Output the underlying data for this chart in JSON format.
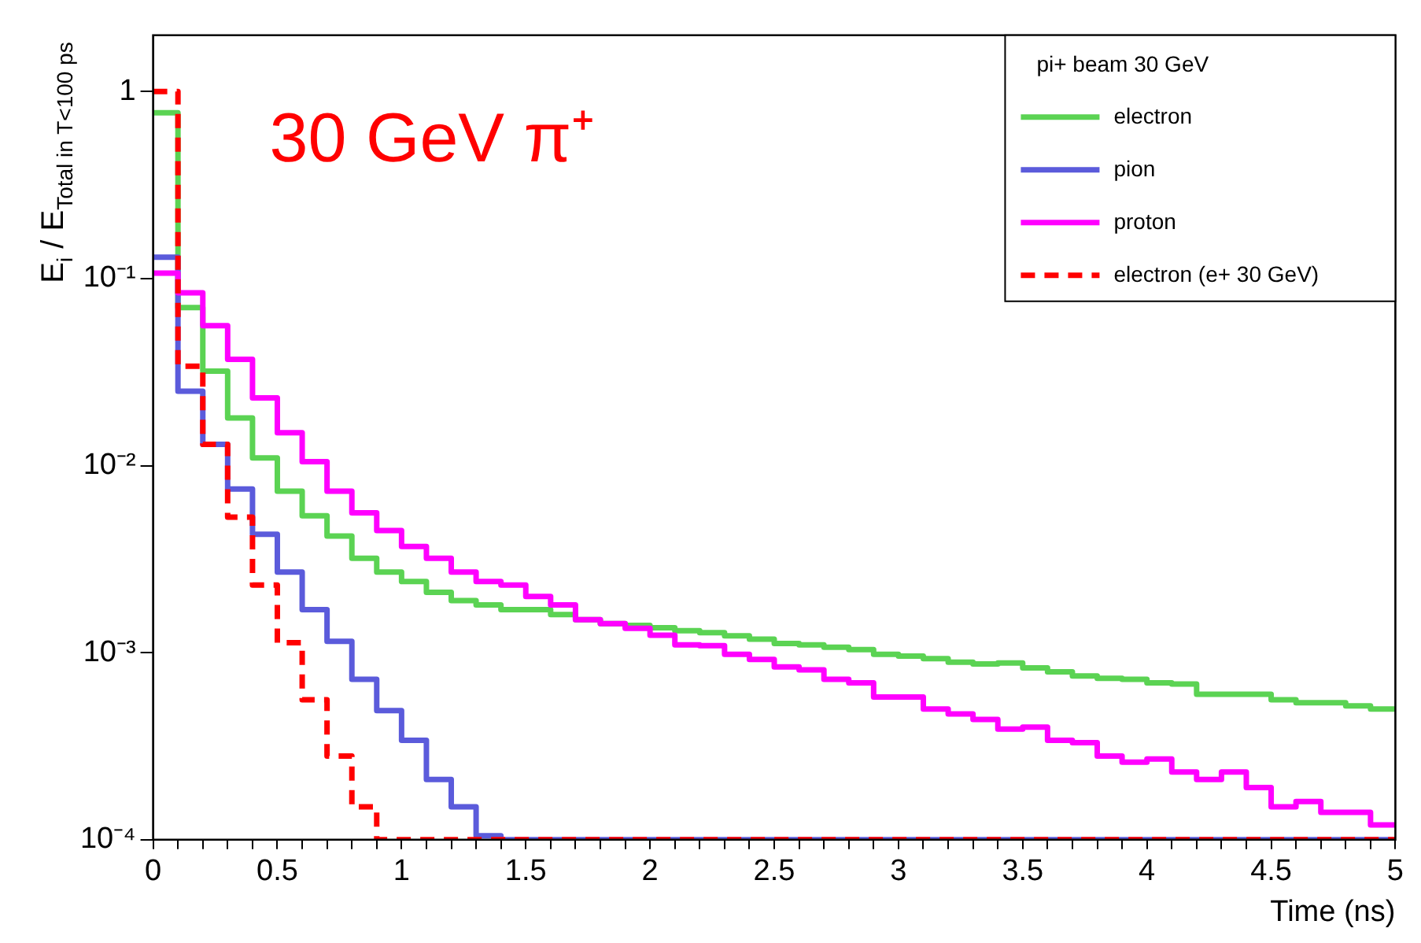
{
  "chart_data": {
    "type": "histogram",
    "xlabel": "Time (ns)",
    "ylabel": "E$_{i}$ / E$_{Total in T<100 ps}$",
    "legend_title": "pi+ beam 30 GeV",
    "legend": "top right",
    "grid": false,
    "log": "y",
    "marker": "none",
    "annotations": [
      "30 GeV π⁺"
    ],
    "xlim": [
      0,
      5
    ],
    "xticks": [
      0,
      {
        "value": 0.1,
        "label": null
      },
      {
        "value": 0.2,
        "label": null
      },
      {
        "value": 0.3,
        "label": null
      },
      {
        "value": 0.4,
        "label": null
      },
      0.5,
      {
        "value": 0.6,
        "label": null
      },
      {
        "value": 0.7,
        "label": null
      },
      {
        "value": 0.8,
        "label": null
      },
      {
        "value": 0.9,
        "label": null
      },
      1,
      {
        "value": 1.1,
        "label": null
      },
      {
        "value": 1.2,
        "label": null
      },
      {
        "value": 1.3,
        "label": null
      },
      {
        "value": 1.4,
        "label": null
      },
      1.5,
      {
        "value": 1.6,
        "label": null
      },
      {
        "value": 1.7,
        "label": null
      },
      {
        "value": 1.8,
        "label": null
      },
      {
        "value": 1.9,
        "label": null
      },
      2,
      {
        "value": 2.1,
        "label": null
      },
      {
        "value": 2.2,
        "label": null
      },
      {
        "value": 2.3,
        "label": null
      },
      {
        "value": 2.4,
        "label": null
      },
      2.5,
      {
        "value": 2.6,
        "label": null
      },
      {
        "value": 2.7,
        "label": null
      },
      {
        "value": 2.8,
        "label": null
      },
      {
        "value": 2.9,
        "label": null
      },
      3,
      {
        "value": 3.1,
        "label": null
      },
      {
        "value": 3.2,
        "label": null
      },
      {
        "value": 3.3,
        "label": null
      },
      {
        "value": 3.4,
        "label": null
      },
      3.5,
      {
        "value": 3.6,
        "label": null
      },
      {
        "value": 3.7,
        "label": null
      },
      {
        "value": 3.8,
        "label": null
      },
      {
        "value": 3.9,
        "label": null
      },
      4,
      {
        "value": 4.1,
        "label": null
      },
      {
        "value": 4.2,
        "label": null
      },
      {
        "value": 4.3,
        "label": null
      },
      {
        "value": 4.4,
        "label": null
      },
      4.5,
      {
        "value": 4.6,
        "label": null
      },
      {
        "value": 4.7,
        "label": null
      },
      {
        "value": 4.8,
        "label": null
      },
      {
        "value": 4.9,
        "label": null
      },
      5
    ],
    "ylim": [
      0.0001,
      2
    ],
    "yticks": [
      {
        "value": 0.0001,
        "label": "10⁻⁴"
      },
      {
        "value": 0.001,
        "label": "10⁻³"
      },
      {
        "value": 0.01,
        "label": "10⁻²"
      },
      {
        "value": 0.1,
        "label": "10⁻¹"
      },
      1
    ],
    "bins": [
      0,
      0.1,
      0.2,
      0.3,
      0.4,
      0.5,
      0.6,
      0.7,
      0.8,
      0.9,
      1,
      1.1,
      1.2,
      1.3,
      1.4,
      1.5,
      1.6,
      1.7,
      1.8,
      1.9,
      2,
      2.1,
      2.2,
      2.3,
      2.4,
      2.5,
      2.6,
      2.7,
      2.8,
      2.9,
      3,
      3.1,
      3.2,
      3.3,
      3.4,
      3.5,
      3.6,
      3.7,
      3.8,
      3.9,
      4,
      4.1,
      4.2,
      4.3,
      4.4,
      4.5,
      4.6,
      4.7,
      4.8,
      4.9,
      5
    ],
    "series": [
      {
        "name": "electron",
        "color": "#5bd353",
        "line_style": "solid",
        "values": [
          0.77,
          0.07,
          0.032,
          0.018,
          0.011,
          0.0073,
          0.0054,
          0.0042,
          0.0032,
          0.0027,
          0.0024,
          0.0021,
          0.0019,
          0.0018,
          0.0017,
          0.0017,
          0.0016,
          0.0015,
          0.00143,
          0.0014,
          0.00136,
          0.00131,
          0.00128,
          0.00123,
          0.00118,
          0.00112,
          0.0011,
          0.00107,
          0.00104,
          0.00098,
          0.00096,
          0.00093,
          0.00089,
          0.00087,
          0.00088,
          0.00083,
          0.00079,
          0.00075,
          0.00073,
          0.00072,
          0.00069,
          0.00068,
          0.0006,
          0.0006,
          0.0006,
          0.00056,
          0.00054,
          0.00054,
          0.00052,
          0.0005
        ]
      },
      {
        "name": "pion",
        "color": "#5b5bdb",
        "line_style": "solid",
        "values": [
          0.13,
          0.025,
          0.013,
          0.0075,
          0.0043,
          0.0027,
          0.0017,
          0.00115,
          0.00072,
          0.00049,
          0.00034,
          0.00021,
          0.00015,
          0.000105,
          0.0001,
          0.0001,
          0.0001,
          0.0001,
          0.0001,
          0.0001,
          0.0001,
          0.0001,
          0.0001,
          0.0001,
          0.0001,
          0.0001,
          0.0001,
          0.0001,
          0.0001,
          0.0001,
          0.0001,
          0.0001,
          0.0001,
          0.0001,
          0.0001,
          0.0001,
          0.0001,
          0.0001,
          0.0001,
          0.0001,
          0.0001,
          0.0001,
          0.0001,
          0.0001,
          0.0001,
          0.0001,
          0.0001,
          0.0001,
          0.0001,
          0.0001
        ]
      },
      {
        "name": "proton",
        "color": "#ff00ff",
        "line_style": "solid",
        "values": [
          0.107,
          0.084,
          0.056,
          0.037,
          0.023,
          0.015,
          0.0105,
          0.0073,
          0.0056,
          0.0045,
          0.0037,
          0.0032,
          0.0027,
          0.0024,
          0.0023,
          0.002,
          0.0018,
          0.0015,
          0.00143,
          0.00135,
          0.00124,
          0.0011,
          0.00109,
          0.00098,
          0.00092,
          0.00084,
          0.00081,
          0.00072,
          0.00069,
          0.00058,
          0.00058,
          0.0005,
          0.00047,
          0.00044,
          0.00039,
          0.0004,
          0.00034,
          0.00033,
          0.00028,
          0.00026,
          0.00027,
          0.00023,
          0.00021,
          0.00023,
          0.00019,
          0.00015,
          0.00016,
          0.00014,
          0.00014,
          0.00012
        ]
      },
      {
        "name": "electron (e+ 30 GeV)",
        "color": "#ff0000",
        "line_style": "dashed",
        "values": [
          1,
          0.034,
          0.013,
          0.0053,
          0.0023,
          0.00113,
          0.00056,
          0.00028,
          0.00015,
          0.0001,
          0.0001,
          0.0001,
          0.0001,
          0.0001,
          0.0001,
          0.0001,
          0.0001,
          0.0001,
          0.0001,
          0.0001,
          0.0001,
          0.0001,
          0.0001,
          0.0001,
          0.0001,
          0.0001,
          0.0001,
          0.0001,
          0.0001,
          0.0001,
          0.0001,
          0.0001,
          0.0001,
          0.0001,
          0.0001,
          0.0001,
          0.0001,
          0.0001,
          0.0001,
          0.0001,
          0.0001,
          0.0001,
          0.0001,
          0.0001,
          0.0001,
          0.0001,
          0.0001,
          0.0001,
          0.0001,
          0.0001
        ]
      }
    ]
  }
}
